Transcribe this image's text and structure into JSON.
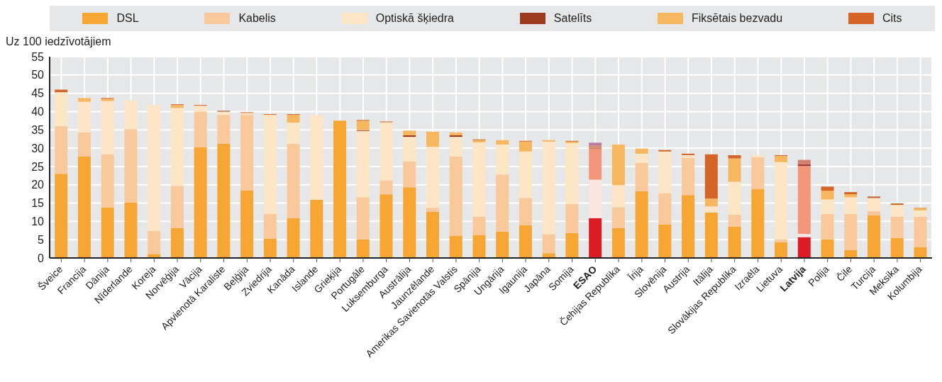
{
  "chart_data": {
    "type": "bar",
    "stacked": true,
    "ylabel": "Uz 100 iedzīvotājiem",
    "ylim": [
      0,
      55
    ],
    "yticks": [
      0,
      5,
      10,
      15,
      20,
      25,
      30,
      35,
      40,
      45,
      50,
      55
    ],
    "grid": true,
    "legend": "top",
    "categories": [
      "Šveice",
      "Francija",
      "Dānija",
      "Nīderlande",
      "Koreja",
      "Norvēģija",
      "Vācija",
      "Apvienotā Karaliste",
      "Beļģija",
      "Zviedrija",
      "Kanāda",
      "Islande",
      "Grieķija",
      "Portugāle",
      "Luksemburga",
      "Austrālija",
      "Jaunzēlande",
      "Amerikas Savienotās Valstis",
      "Spānija",
      "Ungārija",
      "Igaunija",
      "Japāna",
      "Somija",
      "ESAO",
      "Čehijas Republika",
      "Īrija",
      "Slovēnija",
      "Austrija",
      "Itālija",
      "Slovākijas Republika",
      "Izraēla",
      "Lietuva",
      "Latvija",
      "Polija",
      "Čile",
      "Turcija",
      "Meksika",
      "Kolumbija"
    ],
    "series": [
      {
        "name": "DSL",
        "color": "#f7a533",
        "colors": [
          "#f7a533",
          "#f7a533",
          "#f7a533",
          "#f7a533",
          "#f7a533",
          "#f7a533",
          "#f7a533",
          "#f7a533",
          "#f7a533",
          "#f7a533",
          "#f7a533",
          "#f7a533",
          "#f7a533",
          "#f7a533",
          "#f7a533",
          "#f7a533",
          "#f7a533",
          "#f7a533",
          "#f7a533",
          "#f7a533",
          "#f7a533",
          "#f7a533",
          "#f7a533",
          "#dc1c24",
          "#f7a533",
          "#f7a533",
          "#f7a533",
          "#f7a533",
          "#f7a533",
          "#f7a533",
          "#f7a533",
          "#f7a533",
          "#dc1c24",
          "#f7a533",
          "#f7a533",
          "#f7a533",
          "#f7a533",
          "#f7a533"
        ],
        "values": [
          23,
          27.8,
          13.8,
          15.1,
          1.1,
          8.2,
          30.2,
          31.2,
          18.5,
          5.3,
          10.9,
          15.9,
          37.5,
          5.1,
          17.4,
          19.3,
          12.6,
          6.1,
          6.3,
          7.2,
          9,
          1.3,
          6.8,
          10.9,
          8.2,
          18.2,
          9.1,
          17.2,
          12.4,
          8.6,
          18.9,
          4.3,
          5.7,
          5.1,
          2.2,
          11.6,
          5.5,
          3
        ]
      },
      {
        "name": "Kabelis",
        "color": "#f9c99b",
        "colors": [
          "#f9c99b",
          "#f9c99b",
          "#f9c99b",
          "#f9c99b",
          "#f9c99b",
          "#f9c99b",
          "#f9c99b",
          "#f9c99b",
          "#f9c99b",
          "#f9c99b",
          "#f9c99b",
          "#f9c99b",
          "#f9c99b",
          "#f9c99b",
          "#f9c99b",
          "#f9c99b",
          "#f9c99b",
          "#f9c99b",
          "#f9c99b",
          "#f9c99b",
          "#f9c99b",
          "#f9c99b",
          "#f9c99b",
          "#fbe5e1",
          "#f9c99b",
          "#f9c99b",
          "#f9c99b",
          "#f9c99b",
          "#f9c99b",
          "#f9c99b",
          "#f9c99b",
          "#f9c99b",
          "#fbe5e1",
          "#f9c99b",
          "#f9c99b",
          "#f9c99b",
          "#f9c99b",
          "#f9c99b"
        ],
        "values": [
          13,
          6.5,
          14.5,
          20.1,
          6.3,
          11.5,
          9.8,
          7.9,
          20.6,
          6.7,
          20.3,
          0,
          0,
          11.5,
          3.8,
          7.1,
          1.1,
          21.6,
          5,
          15.6,
          7.4,
          5.2,
          7.9,
          10.5,
          5.7,
          7.8,
          8.6,
          10.2,
          0,
          3.2,
          8.7,
          0.8,
          0.9,
          6.9,
          9.8,
          1.2,
          5.8,
          8.3
        ]
      },
      {
        "name": "Optiskā šķiedra",
        "color": "#fde6c6",
        "colors": [
          "#fde6c6",
          "#fde6c6",
          "#fde6c6",
          "#fde6c6",
          "#fde6c6",
          "#fde6c6",
          "#fde6c6",
          "#fde6c6",
          "#fde6c6",
          "#fde6c6",
          "#fde6c6",
          "#fde6c6",
          "#fde6c6",
          "#fde6c6",
          "#fde6c6",
          "#fde6c6",
          "#fde6c6",
          "#fde6c6",
          "#fde6c6",
          "#fde6c6",
          "#fde6c6",
          "#fde6c6",
          "#fde6c6",
          "#f4967a",
          "#fde6c6",
          "#fde6c6",
          "#fde6c6",
          "#fde6c6",
          "#fde6c6",
          "#fde6c6",
          "#fde6c6",
          "#fde6c6",
          "#f4967a",
          "#fde6c6",
          "#fde6c6",
          "#fde6c6",
          "#fde6c6",
          "#fde6c6"
        ],
        "values": [
          9.3,
          8.4,
          14.6,
          7.9,
          34.4,
          21.3,
          1.6,
          0.9,
          0.5,
          27.1,
          5.8,
          23.1,
          null,
          18.1,
          15.9,
          6.7,
          16.7,
          5.4,
          20.3,
          8.2,
          12.7,
          25.3,
          16.7,
          8.5,
          6,
          2.5,
          11.4,
          0.7,
          1.7,
          9,
          0.5,
          21.1,
          18.5,
          4,
          4.6,
          3.6,
          3.2,
          1.7
        ]
      },
      {
        "name": "Satelīts",
        "color": "#9e3a1e",
        "colors": [
          "#9e3a1e",
          "#9e3a1e",
          "#9e3a1e",
          "#9e3a1e",
          "#9e3a1e",
          "#9e3a1e",
          "#9e3a1e",
          "#9e3a1e",
          "#9e3a1e",
          "#9e3a1e",
          "#9e3a1e",
          "#9e3a1e",
          "#9e3a1e",
          "#9e3a1e",
          "#9e3a1e",
          "#9e3a1e",
          "#9e3a1e",
          "#9e3a1e",
          "#9e3a1e",
          "#9e3a1e",
          "#9e3a1e",
          "#9e3a1e",
          "#9e3a1e",
          "#a03a2a",
          "#9e3a1e",
          "#9e3a1e",
          "#9e3a1e",
          "#9e3a1e",
          "#9e3a1e",
          "#9e3a1e",
          "#9e3a1e",
          "#9e3a1e",
          "#a03a2a",
          "#9e3a1e",
          "#9e3a1e",
          "#9e3a1e",
          "#9e3a1e",
          "#9e3a1e"
        ],
        "values": [
          0,
          0,
          0,
          0,
          0,
          0,
          0,
          0.2,
          0,
          0,
          0,
          0,
          0,
          0.2,
          0,
          0.4,
          0,
          0.4,
          0,
          0,
          0,
          0,
          0,
          0.2,
          0,
          0,
          0,
          0,
          0,
          0,
          0,
          0,
          0.5,
          0,
          0,
          0.2,
          0,
          0
        ]
      },
      {
        "name": "Fiksētais bezvadu",
        "color": "#f6b75e",
        "colors": [
          "#f6b75e",
          "#f6b75e",
          "#f6b75e",
          "#f6b75e",
          "#f6b75e",
          "#f6b75e",
          "#f6b75e",
          "#f6b75e",
          "#f6b75e",
          "#f6b75e",
          "#f6b75e",
          "#f6b75e",
          "#f6b75e",
          "#f6b75e",
          "#f6b75e",
          "#f6b75e",
          "#f6b75e",
          "#f6b75e",
          "#f6b75e",
          "#f6b75e",
          "#f6b75e",
          "#f6b75e",
          "#f6b75e",
          "#d98a6a",
          "#f6b75e",
          "#f6b75e",
          "#f6b75e",
          "#f6b75e",
          "#f6b75e",
          "#f6b75e",
          "#f6b75e",
          "#f6b75e",
          "#d48070",
          "#f6b75e",
          "#f6b75e",
          "#f6b75e",
          "#f6b75e",
          "#f6b75e"
        ],
        "values": [
          0,
          1,
          0.6,
          0,
          0,
          0.8,
          0,
          0,
          0,
          0,
          2.1,
          0,
          0,
          2.6,
          0,
          1.3,
          4.1,
          0.8,
          0.6,
          1.2,
          2.7,
          0.4,
          0.4,
          0.6,
          11.1,
          1.4,
          0,
          0,
          2.1,
          6.4,
          0,
          1.7,
          1.2,
          2.4,
          0.8,
          0,
          0,
          0.6
        ]
      },
      {
        "name": "Cits",
        "color": "#d46527",
        "colors": [
          "#d46527",
          "#d46527",
          "#d46527",
          "#d46527",
          "#d46527",
          "#d46527",
          "#d46527",
          "#d46527",
          "#d46527",
          "#d46527",
          "#d46527",
          "#d46527",
          "#d46527",
          "#d46527",
          "#d46527",
          "#d46527",
          "#d46527",
          "#d46527",
          "#d46527",
          "#d46527",
          "#d46527",
          "#d46527",
          "#d46527",
          "#b87aa0",
          "#d46527",
          "#d46527",
          "#d46527",
          "#d46527",
          "#d46527",
          "#d46527",
          "#d46527",
          "#d46527",
          "#d46527",
          "#d46527",
          "#d46527",
          "#d46527",
          "#d46527",
          "#d46527"
        ],
        "values": [
          0.7,
          0,
          0.2,
          0,
          0,
          0.2,
          0.2,
          0,
          0.2,
          0.2,
          0.2,
          0,
          0,
          0.2,
          0.2,
          0,
          0,
          0,
          0.2,
          0,
          0.2,
          0,
          0.2,
          0.8,
          0,
          0,
          0.4,
          0.4,
          12.1,
          0.9,
          0,
          0.2,
          0,
          1.1,
          0.6,
          0.2,
          0.4,
          0.1
        ]
      }
    ]
  }
}
